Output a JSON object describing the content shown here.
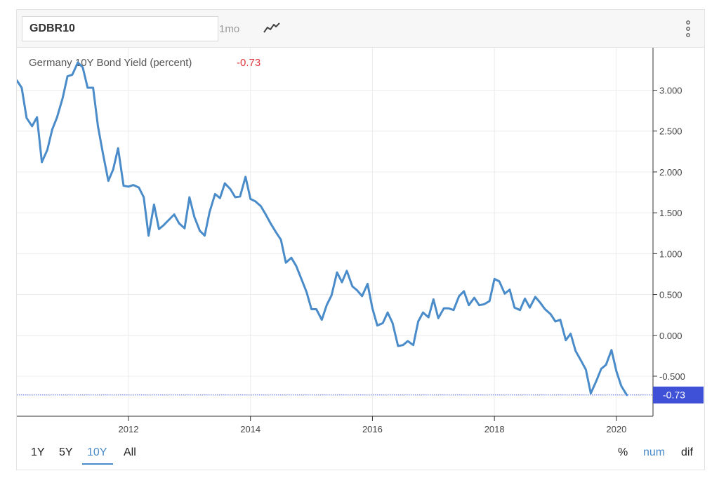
{
  "toolbar": {
    "symbol": "GDBR10",
    "interval": "1mo",
    "chart_type_icon": "line-chart-icon",
    "menu_icon": "vertical-dots-icon"
  },
  "chart_data": {
    "type": "line",
    "title": "Germany 10Y Bond Yield (percent)",
    "last_value_text": "-0.73",
    "last_value": -0.73,
    "xlabel": "",
    "ylabel": "",
    "x_ticks": [
      "2012",
      "2014",
      "2016",
      "2018",
      "2020"
    ],
    "x_tick_values": [
      2012,
      2014,
      2016,
      2018,
      2020
    ],
    "y_ticks": [
      "3.000",
      "2.500",
      "2.000",
      "1.500",
      "1.000",
      "0.500",
      "0.000",
      "-0.500"
    ],
    "y_tick_values": [
      3.0,
      2.5,
      2.0,
      1.5,
      1.0,
      0.5,
      0.0,
      -0.5
    ],
    "xlim": [
      2010.17,
      2020.6
    ],
    "ylim": [
      -0.99,
      3.52
    ],
    "grid": true,
    "colors": {
      "line": "#4a8bc9",
      "last_badge": "#3f51d6",
      "last_text": "#e0393e",
      "grid": "#ececec"
    },
    "series": [
      {
        "x": [
          2010.17,
          2010.25,
          2010.33,
          2010.42,
          2010.5,
          2010.58,
          2010.67,
          2010.75,
          2010.83,
          2010.92,
          2011.0,
          2011.08,
          2011.17,
          2011.25,
          2011.33,
          2011.42,
          2011.5,
          2011.58,
          2011.67,
          2011.75,
          2011.83,
          2011.92,
          2012.0,
          2012.08,
          2012.17,
          2012.25,
          2012.33,
          2012.42,
          2012.5,
          2012.58,
          2012.67,
          2012.75,
          2012.83,
          2012.92,
          2013.0,
          2013.08,
          2013.17,
          2013.25,
          2013.33,
          2013.42,
          2013.5,
          2013.58,
          2013.67,
          2013.75,
          2013.83,
          2013.92,
          2014.0,
          2014.08,
          2014.17,
          2014.25,
          2014.33,
          2014.42,
          2014.5,
          2014.58,
          2014.67,
          2014.75,
          2014.83,
          2014.92,
          2015.0,
          2015.08,
          2015.17,
          2015.25,
          2015.33,
          2015.42,
          2015.5,
          2015.58,
          2015.67,
          2015.75,
          2015.83,
          2015.92,
          2016.0,
          2016.08,
          2016.17,
          2016.25,
          2016.33,
          2016.42,
          2016.5,
          2016.58,
          2016.67,
          2016.75,
          2016.83,
          2016.92,
          2017.0,
          2017.08,
          2017.17,
          2017.25,
          2017.33,
          2017.42,
          2017.5,
          2017.58,
          2017.67,
          2017.75,
          2017.83,
          2017.92,
          2018.0,
          2018.08,
          2018.17,
          2018.25,
          2018.33,
          2018.42,
          2018.5,
          2018.58,
          2018.67,
          2018.75,
          2018.83,
          2018.92,
          2019.0,
          2019.08,
          2019.17,
          2019.25,
          2019.33,
          2019.42,
          2019.5,
          2019.58,
          2019.67,
          2019.75,
          2019.83,
          2019.92,
          2020.0,
          2020.08,
          2020.17
        ],
        "y": [
          3.12,
          3.03,
          2.66,
          2.56,
          2.67,
          2.12,
          2.27,
          2.52,
          2.67,
          2.9,
          3.17,
          3.19,
          3.34,
          3.28,
          3.03,
          3.03,
          2.56,
          2.23,
          1.89,
          2.03,
          2.29,
          1.83,
          1.82,
          1.84,
          1.81,
          1.69,
          1.22,
          1.6,
          1.3,
          1.35,
          1.42,
          1.48,
          1.37,
          1.31,
          1.69,
          1.45,
          1.28,
          1.22,
          1.51,
          1.73,
          1.68,
          1.86,
          1.79,
          1.69,
          1.7,
          1.94,
          1.67,
          1.64,
          1.58,
          1.48,
          1.37,
          1.26,
          1.17,
          0.89,
          0.95,
          0.85,
          0.7,
          0.53,
          0.32,
          0.32,
          0.19,
          0.37,
          0.49,
          0.77,
          0.65,
          0.79,
          0.6,
          0.55,
          0.48,
          0.63,
          0.33,
          0.12,
          0.15,
          0.28,
          0.15,
          -0.13,
          -0.12,
          -0.07,
          -0.12,
          0.17,
          0.28,
          0.22,
          0.44,
          0.21,
          0.33,
          0.33,
          0.31,
          0.48,
          0.54,
          0.37,
          0.46,
          0.37,
          0.38,
          0.42,
          0.69,
          0.66,
          0.51,
          0.56,
          0.34,
          0.31,
          0.45,
          0.34,
          0.47,
          0.4,
          0.32,
          0.26,
          0.17,
          0.19,
          -0.06,
          0.02,
          -0.19,
          -0.31,
          -0.42,
          -0.71,
          -0.56,
          -0.41,
          -0.36,
          -0.18,
          -0.44,
          -0.62,
          -0.73
        ]
      }
    ]
  },
  "footer": {
    "ranges": [
      "1Y",
      "5Y",
      "10Y",
      "All"
    ],
    "active_range": "10Y",
    "modes": [
      "%",
      "num",
      "dif"
    ],
    "active_mode": "num"
  }
}
